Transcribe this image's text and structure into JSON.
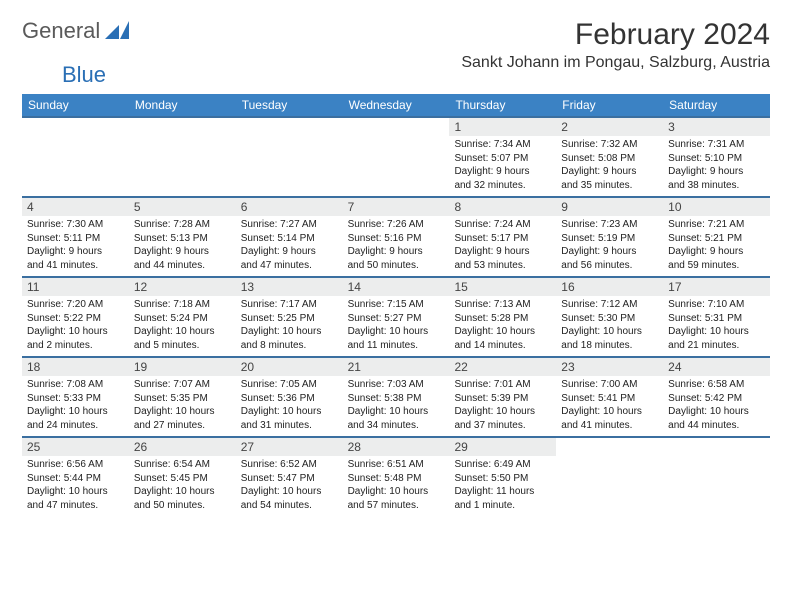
{
  "logo": {
    "text1": "General",
    "text2": "Blue",
    "mark_color": "#2a6fb5"
  },
  "title": "February 2024",
  "subtitle": "Sankt Johann im Pongau, Salzburg, Austria",
  "colors": {
    "header_bg": "#3b82c4",
    "header_text": "#ffffff",
    "week_border": "#3b6fa0",
    "daynum_bg": "#eceded",
    "text": "#222222",
    "page_bg": "#ffffff"
  },
  "dow": [
    "Sunday",
    "Monday",
    "Tuesday",
    "Wednesday",
    "Thursday",
    "Friday",
    "Saturday"
  ],
  "lead_blanks": 4,
  "days": [
    {
      "n": "1",
      "sunrise": "7:34 AM",
      "sunset": "5:07 PM",
      "dl1": "Daylight: 9 hours",
      "dl2": "and 32 minutes."
    },
    {
      "n": "2",
      "sunrise": "7:32 AM",
      "sunset": "5:08 PM",
      "dl1": "Daylight: 9 hours",
      "dl2": "and 35 minutes."
    },
    {
      "n": "3",
      "sunrise": "7:31 AM",
      "sunset": "5:10 PM",
      "dl1": "Daylight: 9 hours",
      "dl2": "and 38 minutes."
    },
    {
      "n": "4",
      "sunrise": "7:30 AM",
      "sunset": "5:11 PM",
      "dl1": "Daylight: 9 hours",
      "dl2": "and 41 minutes."
    },
    {
      "n": "5",
      "sunrise": "7:28 AM",
      "sunset": "5:13 PM",
      "dl1": "Daylight: 9 hours",
      "dl2": "and 44 minutes."
    },
    {
      "n": "6",
      "sunrise": "7:27 AM",
      "sunset": "5:14 PM",
      "dl1": "Daylight: 9 hours",
      "dl2": "and 47 minutes."
    },
    {
      "n": "7",
      "sunrise": "7:26 AM",
      "sunset": "5:16 PM",
      "dl1": "Daylight: 9 hours",
      "dl2": "and 50 minutes."
    },
    {
      "n": "8",
      "sunrise": "7:24 AM",
      "sunset": "5:17 PM",
      "dl1": "Daylight: 9 hours",
      "dl2": "and 53 minutes."
    },
    {
      "n": "9",
      "sunrise": "7:23 AM",
      "sunset": "5:19 PM",
      "dl1": "Daylight: 9 hours",
      "dl2": "and 56 minutes."
    },
    {
      "n": "10",
      "sunrise": "7:21 AM",
      "sunset": "5:21 PM",
      "dl1": "Daylight: 9 hours",
      "dl2": "and 59 minutes."
    },
    {
      "n": "11",
      "sunrise": "7:20 AM",
      "sunset": "5:22 PM",
      "dl1": "Daylight: 10 hours",
      "dl2": "and 2 minutes."
    },
    {
      "n": "12",
      "sunrise": "7:18 AM",
      "sunset": "5:24 PM",
      "dl1": "Daylight: 10 hours",
      "dl2": "and 5 minutes."
    },
    {
      "n": "13",
      "sunrise": "7:17 AM",
      "sunset": "5:25 PM",
      "dl1": "Daylight: 10 hours",
      "dl2": "and 8 minutes."
    },
    {
      "n": "14",
      "sunrise": "7:15 AM",
      "sunset": "5:27 PM",
      "dl1": "Daylight: 10 hours",
      "dl2": "and 11 minutes."
    },
    {
      "n": "15",
      "sunrise": "7:13 AM",
      "sunset": "5:28 PM",
      "dl1": "Daylight: 10 hours",
      "dl2": "and 14 minutes."
    },
    {
      "n": "16",
      "sunrise": "7:12 AM",
      "sunset": "5:30 PM",
      "dl1": "Daylight: 10 hours",
      "dl2": "and 18 minutes."
    },
    {
      "n": "17",
      "sunrise": "7:10 AM",
      "sunset": "5:31 PM",
      "dl1": "Daylight: 10 hours",
      "dl2": "and 21 minutes."
    },
    {
      "n": "18",
      "sunrise": "7:08 AM",
      "sunset": "5:33 PM",
      "dl1": "Daylight: 10 hours",
      "dl2": "and 24 minutes."
    },
    {
      "n": "19",
      "sunrise": "7:07 AM",
      "sunset": "5:35 PM",
      "dl1": "Daylight: 10 hours",
      "dl2": "and 27 minutes."
    },
    {
      "n": "20",
      "sunrise": "7:05 AM",
      "sunset": "5:36 PM",
      "dl1": "Daylight: 10 hours",
      "dl2": "and 31 minutes."
    },
    {
      "n": "21",
      "sunrise": "7:03 AM",
      "sunset": "5:38 PM",
      "dl1": "Daylight: 10 hours",
      "dl2": "and 34 minutes."
    },
    {
      "n": "22",
      "sunrise": "7:01 AM",
      "sunset": "5:39 PM",
      "dl1": "Daylight: 10 hours",
      "dl2": "and 37 minutes."
    },
    {
      "n": "23",
      "sunrise": "7:00 AM",
      "sunset": "5:41 PM",
      "dl1": "Daylight: 10 hours",
      "dl2": "and 41 minutes."
    },
    {
      "n": "24",
      "sunrise": "6:58 AM",
      "sunset": "5:42 PM",
      "dl1": "Daylight: 10 hours",
      "dl2": "and 44 minutes."
    },
    {
      "n": "25",
      "sunrise": "6:56 AM",
      "sunset": "5:44 PM",
      "dl1": "Daylight: 10 hours",
      "dl2": "and 47 minutes."
    },
    {
      "n": "26",
      "sunrise": "6:54 AM",
      "sunset": "5:45 PM",
      "dl1": "Daylight: 10 hours",
      "dl2": "and 50 minutes."
    },
    {
      "n": "27",
      "sunrise": "6:52 AM",
      "sunset": "5:47 PM",
      "dl1": "Daylight: 10 hours",
      "dl2": "and 54 minutes."
    },
    {
      "n": "28",
      "sunrise": "6:51 AM",
      "sunset": "5:48 PM",
      "dl1": "Daylight: 10 hours",
      "dl2": "and 57 minutes."
    },
    {
      "n": "29",
      "sunrise": "6:49 AM",
      "sunset": "5:50 PM",
      "dl1": "Daylight: 11 hours",
      "dl2": "and 1 minute."
    }
  ],
  "labels": {
    "sunrise_prefix": "Sunrise: ",
    "sunset_prefix": "Sunset: "
  }
}
